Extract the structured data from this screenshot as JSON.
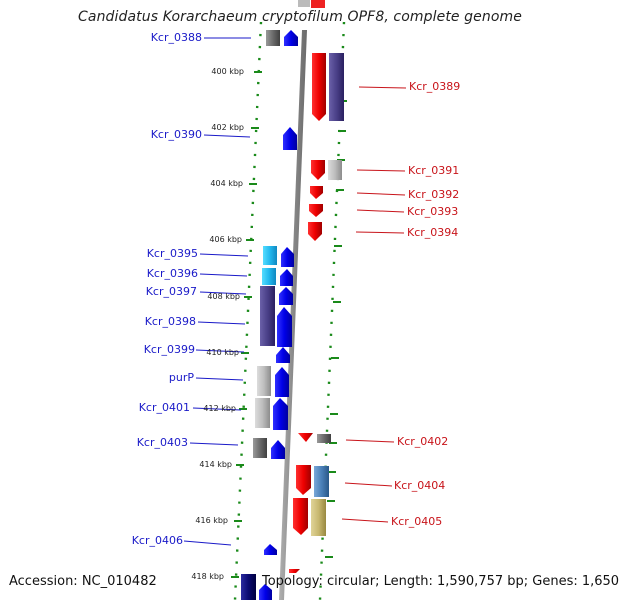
{
  "title": "Candidatus Korarchaeum cryptofilum OPF8, complete genome",
  "accession": "Accession: NC_010482",
  "topology_info": "Topology: circular; Length: 1,590,757 bp; Genes: 1,650",
  "ticks": [
    "400 kbp",
    "402 kbp",
    "404 kbp",
    "406 kbp",
    "408 kbp",
    "410 kbp",
    "412 kbp",
    "414 kbp",
    "416 kbp",
    "418 kbp"
  ],
  "genes_left": [
    "Kcr_0388",
    "Kcr_0390",
    "Kcr_0395",
    "Kcr_0396",
    "Kcr_0397",
    "Kcr_0398",
    "Kcr_0399",
    "purP",
    "Kcr_0401",
    "Kcr_0403",
    "Kcr_0406"
  ],
  "genes_right": [
    "Kcr_0389",
    "Kcr_0391",
    "Kcr_0392",
    "Kcr_0393",
    "Kcr_0394",
    "Kcr_0402",
    "Kcr_0404",
    "Kcr_0405"
  ],
  "colors": {
    "forward_strand": "#1010f0",
    "reverse_strand": "#f01010",
    "backbone": "#888888",
    "dotted_ring": "#1a8a1a",
    "left_label": "#1a1ac8",
    "right_label": "#c8141a",
    "cog_purple": "#4a4088",
    "cog_cyan": "#33bbee",
    "cog_gray": "#b8b8b8",
    "cog_darkgray": "#707070",
    "cog_steelblue": "#4a80b8",
    "cog_khaki": "#c8b870",
    "cog_navy": "#0a0a70"
  }
}
